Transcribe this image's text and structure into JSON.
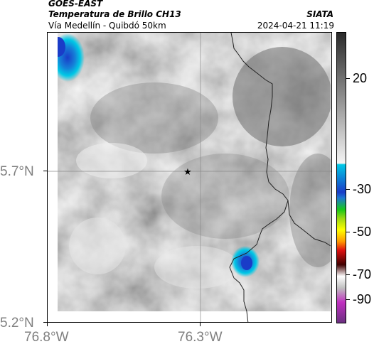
{
  "header": {
    "satellite": "GOES-EAST",
    "product": "Temperatura de Brillo CH13",
    "location": "Vía Medellín - Quibdó 50km",
    "organization": "SIATA",
    "timestamp": "2024-04-21 11:19"
  },
  "map": {
    "lat_labels": [
      "5.7°N",
      "5.2°N"
    ],
    "lon_labels": [
      "76.8°W",
      "76.3°W"
    ],
    "marker": "star-icon"
  },
  "colorbar": {
    "labels": [
      "20",
      "-30",
      "-50",
      "-70",
      "-90"
    ],
    "colors": {
      "gray_light": "#f4f4f4",
      "gray_dark": "#2a2a2a",
      "cyan": "#00c8e6",
      "blue": "#1a3cc8",
      "green": "#18c818",
      "yellow": "#ffff00",
      "red": "#e01010",
      "magenta": "#c030c0"
    }
  }
}
